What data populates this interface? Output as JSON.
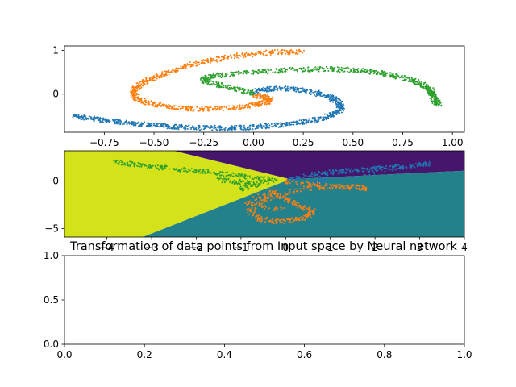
{
  "chart_data": [
    {
      "type": "scatter",
      "panel": "top",
      "xlim": [
        -0.95,
        1.06
      ],
      "ylim": [
        -0.87,
        1.1
      ],
      "xticks": [
        -0.75,
        -0.5,
        -0.25,
        0.0,
        0.25,
        0.5,
        0.75,
        1.0
      ],
      "xtick_labels": [
        "−0.75",
        "−0.50",
        "−0.25",
        "0.00",
        "0.25",
        "0.50",
        "0.75",
        "1.00"
      ],
      "yticks": [
        0,
        1
      ],
      "ytick_labels": [
        "0",
        "1"
      ],
      "series": [
        {
          "color": "#1f77b4",
          "points": [
            [
              -0.9,
              -0.5
            ],
            [
              -0.86,
              -0.53
            ],
            [
              -0.8,
              -0.57
            ],
            [
              -0.74,
              -0.6
            ],
            [
              -0.68,
              -0.63
            ],
            [
              -0.62,
              -0.66
            ],
            [
              -0.56,
              -0.69
            ],
            [
              -0.5,
              -0.71
            ],
            [
              -0.44,
              -0.73
            ],
            [
              -0.38,
              -0.75
            ],
            [
              -0.31,
              -0.76
            ],
            [
              -0.24,
              -0.77
            ],
            [
              -0.17,
              -0.77
            ],
            [
              -0.1,
              -0.77
            ],
            [
              -0.03,
              -0.76
            ],
            [
              0.04,
              -0.74
            ],
            [
              0.11,
              -0.71
            ],
            [
              0.18,
              -0.68
            ],
            [
              0.25,
              -0.64
            ],
            [
              0.31,
              -0.59
            ],
            [
              0.36,
              -0.53
            ],
            [
              0.4,
              -0.46
            ],
            [
              0.43,
              -0.38
            ],
            [
              0.44,
              -0.29
            ],
            [
              0.43,
              -0.2
            ],
            [
              0.41,
              -0.12
            ],
            [
              0.37,
              -0.05
            ],
            [
              0.32,
              0.02
            ],
            [
              0.26,
              0.07
            ],
            [
              0.2,
              0.11
            ],
            [
              0.14,
              0.13
            ],
            [
              0.08,
              0.12
            ],
            [
              0.03,
              0.09
            ],
            [
              0.0,
              0.03
            ]
          ]
        },
        {
          "color": "#ff7f0e",
          "points": [
            [
              0.0,
              -0.03
            ],
            [
              0.05,
              -0.06
            ],
            [
              0.08,
              -0.11
            ],
            [
              0.07,
              -0.17
            ],
            [
              0.03,
              -0.23
            ],
            [
              -0.03,
              -0.28
            ],
            [
              -0.1,
              -0.31
            ],
            [
              -0.18,
              -0.33
            ],
            [
              -0.26,
              -0.34
            ],
            [
              -0.34,
              -0.33
            ],
            [
              -0.41,
              -0.3
            ],
            [
              -0.48,
              -0.25
            ],
            [
              -0.54,
              -0.19
            ],
            [
              -0.58,
              -0.11
            ],
            [
              -0.6,
              -0.02
            ],
            [
              -0.6,
              0.08
            ],
            [
              -0.58,
              0.18
            ],
            [
              -0.55,
              0.28
            ],
            [
              -0.5,
              0.38
            ],
            [
              -0.44,
              0.48
            ],
            [
              -0.38,
              0.58
            ],
            [
              -0.31,
              0.67
            ],
            [
              -0.23,
              0.75
            ],
            [
              -0.15,
              0.82
            ],
            [
              -0.07,
              0.88
            ],
            [
              0.01,
              0.92
            ],
            [
              0.09,
              0.95
            ],
            [
              0.17,
              0.96
            ],
            [
              0.24,
              0.97
            ]
          ]
        },
        {
          "color": "#2ca02c",
          "points": [
            [
              0.0,
              0.03
            ],
            [
              -0.05,
              0.07
            ],
            [
              -0.1,
              0.13
            ],
            [
              -0.17,
              0.2
            ],
            [
              -0.24,
              0.28
            ],
            [
              -0.25,
              0.35
            ],
            [
              -0.21,
              0.41
            ],
            [
              -0.14,
              0.45
            ],
            [
              -0.05,
              0.48
            ],
            [
              0.04,
              0.51
            ],
            [
              0.13,
              0.54
            ],
            [
              0.22,
              0.56
            ],
            [
              0.31,
              0.57
            ],
            [
              0.4,
              0.57
            ],
            [
              0.49,
              0.55
            ],
            [
              0.57,
              0.52
            ],
            [
              0.64,
              0.48
            ],
            [
              0.7,
              0.43
            ],
            [
              0.75,
              0.38
            ],
            [
              0.8,
              0.31
            ],
            [
              0.84,
              0.24
            ],
            [
              0.87,
              0.16
            ],
            [
              0.89,
              0.07
            ],
            [
              0.9,
              -0.02
            ],
            [
              0.91,
              -0.1
            ],
            [
              0.92,
              -0.18
            ],
            [
              0.93,
              -0.25
            ]
          ]
        }
      ]
    },
    {
      "type": "scatter",
      "panel": "middle",
      "title": "Transformation of data points from Input space by Neural network",
      "xlim": [
        -4.95,
        4.0
      ],
      "ylim": [
        -5.9,
        3.2
      ],
      "xticks": [
        -4,
        -3,
        -2,
        -1,
        0,
        1,
        2,
        3,
        4
      ],
      "xtick_labels": [
        "−4",
        "−3",
        "−2",
        "−1",
        "0",
        "1",
        "2",
        "3",
        "4"
      ],
      "yticks": [
        -5,
        0
      ],
      "ytick_labels": [
        "−5",
        "0"
      ],
      "regions": [
        {
          "color": "#d4e21a",
          "polygon": [
            [
              -4.95,
              3.2
            ],
            [
              -2.5,
              3.2
            ],
            [
              0.1,
              0.2
            ],
            [
              -3.2,
              -5.9
            ],
            [
              -4.95,
              -5.9
            ]
          ]
        },
        {
          "color": "#46166c",
          "polygon": [
            [
              -2.5,
              3.2
            ],
            [
              4.0,
              3.2
            ],
            [
              4.0,
              1.1
            ],
            [
              0.1,
              0.2
            ]
          ]
        },
        {
          "color": "#23818c",
          "polygon": [
            [
              0.1,
              0.2
            ],
            [
              4.0,
              1.1
            ],
            [
              4.0,
              -5.9
            ],
            [
              -3.2,
              -5.9
            ]
          ]
        }
      ],
      "series": [
        {
          "color": "#1f77b4",
          "points": [
            [
              0.05,
              0.15
            ],
            [
              0.4,
              0.4
            ],
            [
              0.8,
              0.8
            ],
            [
              1.2,
              1.0
            ],
            [
              1.6,
              1.15
            ],
            [
              2.0,
              1.3
            ],
            [
              2.4,
              1.45
            ],
            [
              2.8,
              1.6
            ],
            [
              3.2,
              1.8
            ],
            [
              0.6,
              -0.2
            ],
            [
              0.9,
              0.1
            ]
          ]
        },
        {
          "color": "#ff7f0e",
          "points": [
            [
              0.0,
              -0.1
            ],
            [
              0.6,
              -0.4
            ],
            [
              1.2,
              -0.6
            ],
            [
              1.8,
              -0.75
            ],
            [
              1.4,
              -0.5
            ],
            [
              0.4,
              -0.8
            ],
            [
              -0.4,
              -1.8
            ],
            [
              -0.8,
              -3.0
            ],
            [
              -0.6,
              -4.0
            ],
            [
              -0.2,
              -4.3
            ],
            [
              0.2,
              -4.1
            ],
            [
              0.5,
              -3.7
            ],
            [
              0.6,
              -3.2
            ],
            [
              0.3,
              -2.6
            ],
            [
              0.0,
              -1.9
            ],
            [
              -0.3,
              -1.2
            ],
            [
              -0.9,
              -2.3
            ],
            [
              -0.1,
              -3.0
            ]
          ]
        },
        {
          "color": "#2ca02c",
          "points": [
            [
              -3.8,
              2.0
            ],
            [
              -3.4,
              1.8
            ],
            [
              -3.0,
              1.5
            ],
            [
              -2.5,
              1.3
            ],
            [
              -2.0,
              1.1
            ],
            [
              -1.6,
              0.9
            ],
            [
              -1.1,
              0.6
            ],
            [
              -0.6,
              0.3
            ],
            [
              -0.2,
              0.1
            ],
            [
              -1.0,
              -0.8
            ],
            [
              -0.6,
              -0.3
            ],
            [
              -1.5,
              0.2
            ],
            [
              -0.9,
              -0.3
            ]
          ]
        }
      ]
    },
    {
      "type": "scatter",
      "panel": "bottom",
      "xlim": [
        0.0,
        1.0
      ],
      "ylim": [
        0.0,
        1.0
      ],
      "xticks": [
        0.0,
        0.2,
        0.4,
        0.6,
        0.8,
        1.0
      ],
      "xtick_labels": [
        "0.0",
        "0.2",
        "0.4",
        "0.6",
        "0.8",
        "1.0"
      ],
      "yticks": [
        0.0,
        0.5,
        1.0
      ],
      "ytick_labels": [
        "0.0",
        "0.5",
        "1.0"
      ],
      "series": []
    }
  ]
}
